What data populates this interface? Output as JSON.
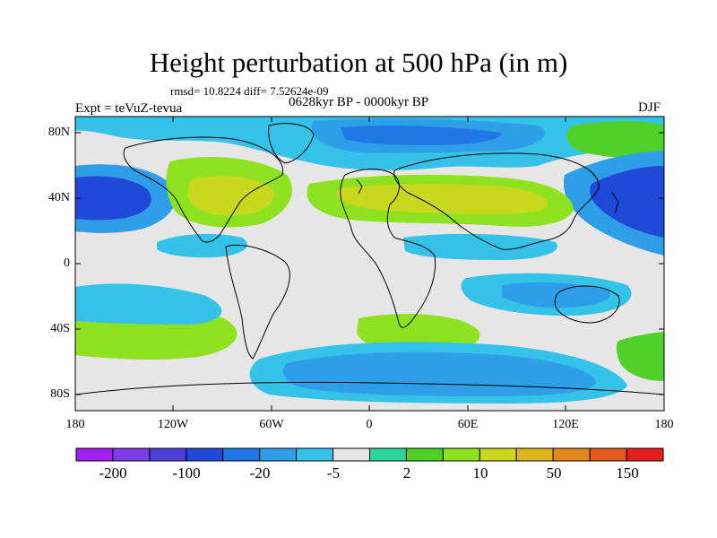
{
  "title": "Height perturbation at 500 hPa (in m)",
  "stats": "rmsd= 10.8224 diff= 7.52624e-09",
  "expt": "Expt = teVuZ-tevua",
  "period": "0628kyr BP - 0000kyr BP",
  "season": "DJF",
  "map": {
    "lat_ticks": [
      "80N",
      "40N",
      "0",
      "40S",
      "80S"
    ],
    "lon_ticks": [
      "180",
      "120W",
      "60W",
      "0",
      "60E",
      "120E",
      "180"
    ]
  },
  "colorbar": {
    "labels": [
      "-200",
      "-100",
      "-20",
      "-5",
      "2",
      "10",
      "50",
      "150"
    ],
    "colors": [
      "#a020f0",
      "#7c3fe6",
      "#4b3fd8",
      "#1f49d6",
      "#1f78e6",
      "#2f9ee8",
      "#35c2e8",
      "#e6e6e6",
      "#2ad69a",
      "#4fd12a",
      "#8ee11e",
      "#c8d81e",
      "#dcb41e",
      "#e08a1e",
      "#e35a1e",
      "#e51e1e"
    ]
  },
  "legend_colors": {
    "land_outline": "#000000",
    "neutral": "#e6e6e6",
    "strong_negative": "#1f49d6",
    "moderate_negative": "#2f9ee8",
    "weak_negative": "#35c2e8",
    "weak_positive": "#2ad69a",
    "moderate_positive": "#8ee11e",
    "strong_positive": "#dcb41e"
  }
}
